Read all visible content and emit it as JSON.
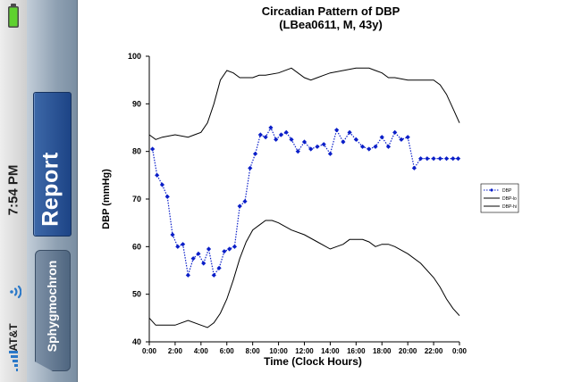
{
  "status_bar": {
    "carrier": "AT&T",
    "time": "7:54 PM"
  },
  "nav": {
    "title_button": "Report",
    "back_button": "Sphygmochron"
  },
  "icons": {
    "battery": "battery-icon",
    "wifi": "wifi-icon",
    "signal": "signal-bars-icon"
  },
  "colors": {
    "series_dbp": "#0a1ec8",
    "band_lines": "#000000",
    "report_button": "#1d4486"
  },
  "chart_data": {
    "type": "line",
    "title": "Circadian Pattern of DBP",
    "subtitle": "(LBea0611, M, 43y)",
    "xlabel": "Time (Clock Hours)",
    "ylabel": "DBP (mmHg)",
    "ylim": [
      40,
      100
    ],
    "yticks": [
      "40",
      "50",
      "60",
      "70",
      "80",
      "90",
      "100"
    ],
    "xlim": [
      0,
      24
    ],
    "xticks": [
      "0:00",
      "2:00",
      "4:00",
      "6:00",
      "8:00",
      "10:00",
      "12:00",
      "14:00",
      "16:00",
      "18:00",
      "20:00",
      "22:00",
      "0:00"
    ],
    "legend_position": "right",
    "series": [
      {
        "name": "DBP",
        "style": "dotted-markers",
        "x": [
          0.25,
          0.6,
          1.0,
          1.4,
          1.8,
          2.2,
          2.6,
          3.0,
          3.4,
          3.8,
          4.2,
          4.6,
          5.0,
          5.4,
          5.8,
          6.2,
          6.6,
          7.0,
          7.4,
          7.8,
          8.2,
          8.6,
          9.0,
          9.4,
          9.8,
          10.2,
          10.6,
          11.0,
          11.5,
          12.0,
          12.5,
          13.0,
          13.5,
          14.0,
          14.5,
          15.0,
          15.5,
          16.0,
          16.5,
          17.0,
          17.5,
          18.0,
          18.5,
          19.0,
          19.5,
          20.0,
          20.5,
          21.0,
          21.5,
          22.0,
          22.5,
          23.0,
          23.5,
          23.9
        ],
        "y": [
          80.5,
          75,
          73,
          70.5,
          62.5,
          60,
          60.5,
          54,
          57.5,
          58.5,
          56.5,
          59.5,
          54,
          55.5,
          59,
          59.5,
          60,
          68.5,
          69.5,
          76.5,
          79.5,
          83.5,
          83,
          85,
          82.5,
          83.5,
          84,
          82.5,
          80,
          82,
          80.5,
          81,
          81.5,
          79.5,
          84.5,
          82,
          84,
          82.5,
          81,
          80.5,
          81,
          83,
          81,
          84,
          82.5,
          83,
          76.5,
          78.5,
          78.5,
          78.5,
          78.5,
          78.5,
          78.5,
          78.5
        ]
      },
      {
        "name": "DBP-lo",
        "style": "solid",
        "x": [
          0.0,
          0.5,
          1.0,
          2.0,
          3.0,
          4.0,
          4.5,
          5.0,
          5.5,
          6.0,
          6.5,
          7.0,
          7.5,
          8.0,
          8.5,
          9.0,
          9.5,
          10.0,
          11.0,
          12.0,
          13.0,
          14.0,
          14.5,
          15.0,
          15.5,
          16.0,
          16.5,
          17.0,
          17.5,
          18.0,
          18.5,
          19.0,
          20.0,
          21.0,
          22.0,
          22.5,
          23.0,
          23.5,
          24.0
        ],
        "y": [
          45,
          43.5,
          43.5,
          43.5,
          44.5,
          43.5,
          43,
          44,
          46,
          49,
          53,
          57.5,
          61,
          63.5,
          64.5,
          65.5,
          65.5,
          65,
          63.5,
          62.5,
          61,
          59.5,
          60,
          60.5,
          61.5,
          61.5,
          61.5,
          61,
          60,
          60.5,
          60.5,
          60,
          58.5,
          56.5,
          53.5,
          51.5,
          49,
          47,
          45.5
        ]
      },
      {
        "name": "DBP-hi",
        "style": "solid",
        "x": [
          0.0,
          0.5,
          1.0,
          2.0,
          3.0,
          3.5,
          4.0,
          4.5,
          5.0,
          5.5,
          6.0,
          6.5,
          7.0,
          7.5,
          8.0,
          8.5,
          9.0,
          10.0,
          11.0,
          12.0,
          12.5,
          13.0,
          13.5,
          14.0,
          15.0,
          16.0,
          17.0,
          17.5,
          18.0,
          18.5,
          19.0,
          20.0,
          21.0,
          22.0,
          22.5,
          23.0,
          23.5,
          24.0
        ],
        "y": [
          83.5,
          82.5,
          83,
          83.5,
          83,
          83.5,
          84,
          86,
          90,
          95,
          97,
          96.5,
          95.5,
          95.5,
          95.5,
          96,
          96,
          96.5,
          97.5,
          95.5,
          95,
          95.5,
          96,
          96.5,
          97,
          97.5,
          97.5,
          97,
          96.5,
          95.5,
          95.5,
          95,
          95,
          95,
          94,
          92,
          89,
          86
        ]
      }
    ]
  }
}
